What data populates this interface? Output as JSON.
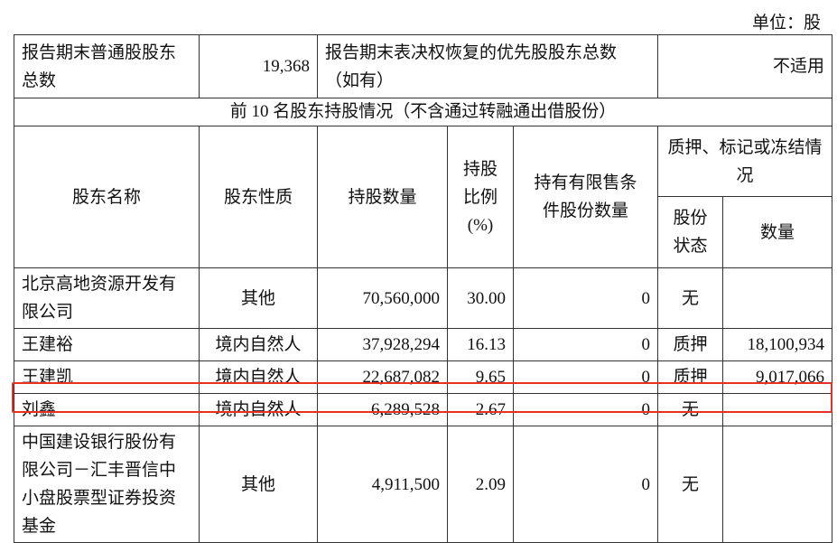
{
  "unit_label": "单位：股",
  "summary": {
    "common_holders_label": "报告期末普通股股东总数",
    "common_holders_value": "19,368",
    "preferred_holders_label": "报告期末表决权恢复的优先股股东总数（如有）",
    "preferred_holders_value": "不适用"
  },
  "section_title": "前 10 名股东持股情况（不含通过转融通出借股份）",
  "headers": {
    "name": "股东名称",
    "nature": "股东性质",
    "shares": "持股数量",
    "ratio": "持股比例(%)",
    "restricted": "持有有限售条件股份数量",
    "pledge_group": "质押、标记或冻结情况",
    "pledge_status": "股份状态",
    "pledge_qty": "数量"
  },
  "rows": [
    {
      "name": "北京高地资源开发有限公司",
      "nature": "其他",
      "shares": "70,560,000",
      "ratio": "30.00",
      "restricted": "0",
      "status": "无",
      "qty": ""
    },
    {
      "name": "王建裕",
      "nature": "境内自然人",
      "shares": "37,928,294",
      "ratio": "16.13",
      "restricted": "0",
      "status": "质押",
      "qty": "18,100,934"
    },
    {
      "name": "王建凯",
      "nature": "境内自然人",
      "shares": "22,687,082",
      "ratio": "9.65",
      "restricted": "0",
      "status": "质押",
      "qty": "9,017,066"
    },
    {
      "name": "刘鑫",
      "nature": "境内自然人",
      "shares": "6,289,528",
      "ratio": "2.67",
      "restricted": "0",
      "status": "无",
      "qty": ""
    },
    {
      "name": "中国建设银行股份有限公司－汇丰晋信中小盘股票型证券投资基金",
      "nature": "其他",
      "shares": "4,911,500",
      "ratio": "2.09",
      "restricted": "0",
      "status": "无",
      "qty": ""
    }
  ],
  "highlight_color": "#e8302a"
}
